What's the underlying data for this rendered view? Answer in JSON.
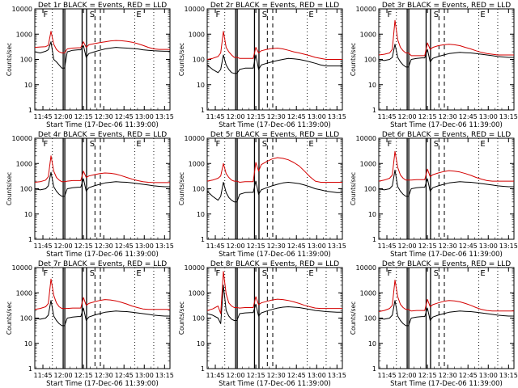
{
  "figure": {
    "title_template": "BLACK = Events, RED = LLD",
    "ylabel": "Counts/sec",
    "xlabel": "Start Time (17-Dec-06 11:39:00)",
    "x_ticks": [
      "11:45",
      "12:00",
      "12:15",
      "12:30",
      "12:45",
      "13:00",
      "13:15"
    ],
    "y_ticks": [
      "1",
      "10",
      "100",
      "1000",
      "10000"
    ],
    "colors": {
      "events": "#000000",
      "lld": "#d40000"
    },
    "marker_letters": [
      "F",
      "S",
      "E"
    ]
  },
  "chart_data": [
    {
      "type": "line",
      "title": "Det 1r BLACK = Events, RED = LLD",
      "xlabel": "Start Time (17-Dec-06 11:39:00)",
      "ylabel": "Counts/sec",
      "ylim": [
        1,
        10000
      ],
      "xlim_minutes": [
        0,
        100
      ],
      "x_minutes": [
        0,
        4,
        8,
        10,
        12,
        14,
        16,
        18,
        20,
        22,
        24,
        28,
        32,
        34,
        36,
        38,
        40,
        44,
        48,
        52,
        56,
        60,
        64,
        68,
        72,
        76,
        80,
        84,
        88,
        92,
        96,
        100
      ],
      "series": [
        {
          "name": "Events",
          "color": "#000000",
          "values": [
            200,
            180,
            210,
            240,
            500,
            100,
            80,
            60,
            45,
            45,
            200,
            230,
            240,
            240,
            350,
            120,
            170,
            200,
            230,
            260,
            280,
            300,
            290,
            280,
            270,
            260,
            240,
            230,
            220,
            215,
            210,
            210
          ]
        },
        {
          "name": "LLD",
          "color": "#d40000",
          "values": [
            300,
            310,
            320,
            360,
            1300,
            400,
            250,
            200,
            180,
            180,
            260,
            280,
            290,
            290,
            500,
            300,
            380,
            420,
            460,
            500,
            540,
            560,
            550,
            520,
            480,
            420,
            360,
            300,
            260,
            250,
            250,
            250
          ]
        }
      ]
    },
    {
      "type": "line",
      "title": "Det 2r BLACK = Events, RED = LLD",
      "xlabel": "Start Time (17-Dec-06 11:39:00)",
      "ylabel": "Counts/sec",
      "ylim": [
        1,
        10000
      ],
      "xlim_minutes": [
        0,
        100
      ],
      "x_minutes": [
        0,
        4,
        8,
        10,
        12,
        14,
        16,
        18,
        20,
        22,
        24,
        28,
        32,
        34,
        36,
        38,
        40,
        44,
        48,
        52,
        56,
        60,
        64,
        68,
        72,
        76,
        80,
        84,
        88,
        92,
        96,
        100
      ],
      "series": [
        {
          "name": "Events",
          "color": "#000000",
          "values": [
            60,
            40,
            30,
            40,
            150,
            60,
            40,
            30,
            28,
            28,
            40,
            45,
            45,
            45,
            150,
            40,
            60,
            70,
            80,
            90,
            100,
            110,
            105,
            100,
            90,
            80,
            70,
            60,
            55,
            55,
            55,
            55
          ]
        },
        {
          "name": "LLD",
          "color": "#d40000",
          "values": [
            100,
            110,
            130,
            180,
            1300,
            300,
            200,
            150,
            120,
            120,
            110,
            110,
            110,
            110,
            300,
            180,
            220,
            250,
            270,
            280,
            260,
            230,
            200,
            180,
            160,
            140,
            120,
            110,
            100,
            100,
            100,
            100
          ]
        }
      ]
    },
    {
      "type": "line",
      "title": "Det 3r BLACK = Events, RED = LLD",
      "xlabel": "Start Time (17-Dec-06 11:39:00)",
      "ylabel": "Counts/sec",
      "ylim": [
        1,
        10000
      ],
      "xlim_minutes": [
        0,
        100
      ],
      "x_minutes": [
        0,
        4,
        8,
        10,
        12,
        14,
        16,
        18,
        20,
        22,
        24,
        28,
        32,
        34,
        36,
        38,
        40,
        44,
        48,
        52,
        56,
        60,
        64,
        68,
        72,
        76,
        80,
        84,
        88,
        92,
        96,
        100
      ],
      "series": [
        {
          "name": "Events",
          "color": "#000000",
          "values": [
            100,
            90,
            100,
            120,
            400,
            120,
            80,
            60,
            50,
            50,
            100,
            110,
            115,
            115,
            250,
            80,
            110,
            130,
            150,
            170,
            180,
            190,
            185,
            180,
            170,
            160,
            150,
            140,
            130,
            125,
            120,
            120
          ]
        },
        {
          "name": "LLD",
          "color": "#d40000",
          "values": [
            150,
            160,
            180,
            250,
            3500,
            600,
            300,
            220,
            180,
            180,
            140,
            140,
            140,
            140,
            450,
            250,
            300,
            350,
            380,
            400,
            380,
            350,
            300,
            260,
            220,
            190,
            170,
            160,
            150,
            150,
            150,
            150
          ]
        }
      ]
    },
    {
      "type": "line",
      "title": "Det 4r BLACK = Events, RED = LLD",
      "xlabel": "Start Time (17-Dec-06 11:39:00)",
      "ylabel": "Counts/sec",
      "ylim": [
        1,
        10000
      ],
      "xlim_minutes": [
        0,
        100
      ],
      "x_minutes": [
        0,
        4,
        8,
        10,
        12,
        14,
        16,
        18,
        20,
        22,
        24,
        28,
        32,
        34,
        36,
        38,
        40,
        44,
        48,
        52,
        56,
        60,
        64,
        68,
        72,
        76,
        80,
        84,
        88,
        92,
        96,
        100
      ],
      "series": [
        {
          "name": "Events",
          "color": "#000000",
          "values": [
            100,
            90,
            100,
            130,
            450,
            120,
            80,
            60,
            50,
            50,
            100,
            110,
            115,
            115,
            250,
            80,
            110,
            130,
            150,
            170,
            180,
            190,
            185,
            180,
            170,
            160,
            150,
            140,
            130,
            125,
            120,
            120
          ]
        },
        {
          "name": "LLD",
          "color": "#d40000",
          "values": [
            180,
            190,
            220,
            300,
            2000,
            500,
            280,
            220,
            190,
            190,
            200,
            210,
            210,
            210,
            500,
            280,
            320,
            360,
            400,
            420,
            410,
            380,
            330,
            280,
            240,
            210,
            190,
            180,
            175,
            175,
            175,
            175
          ]
        }
      ]
    },
    {
      "type": "line",
      "title": "Det 5r BLACK = Events, RED = LLD",
      "xlabel": "Start Time (17-Dec-06 11:39:00)",
      "ylabel": "Counts/sec",
      "ylim": [
        1,
        10000
      ],
      "xlim_minutes": [
        0,
        100
      ],
      "x_minutes": [
        0,
        4,
        8,
        10,
        12,
        14,
        16,
        18,
        20,
        22,
        24,
        28,
        32,
        34,
        36,
        38,
        40,
        44,
        48,
        52,
        56,
        60,
        64,
        68,
        72,
        76,
        80,
        84,
        88,
        92,
        96,
        100
      ],
      "series": [
        {
          "name": "Events",
          "color": "#000000",
          "values": [
            80,
            50,
            35,
            50,
            180,
            70,
            45,
            35,
            30,
            30,
            60,
            70,
            72,
            72,
            200,
            60,
            90,
            110,
            130,
            150,
            170,
            180,
            170,
            160,
            140,
            120,
            100,
            90,
            80,
            75,
            70,
            70
          ]
        },
        {
          "name": "LLD",
          "color": "#d40000",
          "values": [
            200,
            220,
            260,
            320,
            1000,
            400,
            280,
            220,
            200,
            200,
            180,
            190,
            190,
            190,
            1100,
            500,
            900,
            1200,
            1500,
            1700,
            1600,
            1400,
            1100,
            800,
            500,
            300,
            200,
            180,
            180,
            180,
            180,
            180
          ]
        }
      ]
    },
    {
      "type": "line",
      "title": "Det 6r BLACK = Events, RED = LLD",
      "xlabel": "Start Time (17-Dec-06 11:39:00)",
      "ylabel": "Counts/sec",
      "ylim": [
        1,
        10000
      ],
      "xlim_minutes": [
        0,
        100
      ],
      "x_minutes": [
        0,
        4,
        8,
        10,
        12,
        14,
        16,
        18,
        20,
        22,
        24,
        28,
        32,
        34,
        36,
        38,
        40,
        44,
        48,
        52,
        56,
        60,
        64,
        68,
        72,
        76,
        80,
        84,
        88,
        92,
        96,
        100
      ],
      "series": [
        {
          "name": "Events",
          "color": "#000000",
          "values": [
            100,
            90,
            100,
            130,
            550,
            120,
            80,
            60,
            50,
            50,
            100,
            110,
            115,
            115,
            250,
            80,
            110,
            130,
            150,
            170,
            180,
            190,
            185,
            180,
            170,
            160,
            150,
            140,
            130,
            125,
            120,
            120
          ]
        },
        {
          "name": "LLD",
          "color": "#d40000",
          "values": [
            200,
            220,
            260,
            350,
            3000,
            700,
            350,
            260,
            220,
            220,
            220,
            230,
            230,
            230,
            600,
            300,
            360,
            420,
            480,
            520,
            500,
            460,
            400,
            340,
            280,
            240,
            210,
            200,
            200,
            200,
            200,
            200
          ]
        }
      ]
    },
    {
      "type": "line",
      "title": "Det 7r BLACK = Events, RED = LLD",
      "xlabel": "Start Time (17-Dec-06 11:39:00)",
      "ylabel": "Counts/sec",
      "ylim": [
        1,
        10000
      ],
      "xlim_minutes": [
        0,
        100
      ],
      "x_minutes": [
        0,
        4,
        8,
        10,
        12,
        14,
        16,
        18,
        20,
        22,
        24,
        28,
        32,
        34,
        36,
        38,
        40,
        44,
        48,
        52,
        56,
        60,
        64,
        68,
        72,
        76,
        80,
        84,
        88,
        92,
        96,
        100
      ],
      "series": [
        {
          "name": "Events",
          "color": "#000000",
          "values": [
            100,
            90,
            100,
            130,
            500,
            120,
            80,
            60,
            50,
            50,
            100,
            110,
            115,
            115,
            250,
            80,
            110,
            130,
            150,
            170,
            180,
            190,
            185,
            180,
            170,
            160,
            150,
            140,
            130,
            125,
            120,
            120
          ]
        },
        {
          "name": "LLD",
          "color": "#d40000",
          "values": [
            220,
            240,
            280,
            380,
            3500,
            800,
            400,
            280,
            240,
            240,
            240,
            250,
            250,
            250,
            650,
            320,
            380,
            440,
            500,
            540,
            520,
            480,
            420,
            360,
            300,
            260,
            230,
            220,
            220,
            220,
            220,
            220
          ]
        }
      ]
    },
    {
      "type": "line",
      "title": "Det 8r BLACK = Events, RED = LLD",
      "xlabel": "Start Time (17-Dec-06 11:39:00)",
      "ylabel": "Counts/sec",
      "ylim": [
        1,
        10000
      ],
      "xlim_minutes": [
        0,
        100
      ],
      "x_minutes": [
        0,
        4,
        8,
        10,
        12,
        14,
        16,
        18,
        20,
        22,
        24,
        28,
        32,
        34,
        36,
        38,
        40,
        44,
        48,
        52,
        56,
        60,
        64,
        68,
        72,
        76,
        80,
        84,
        88,
        92,
        96,
        100
      ],
      "series": [
        {
          "name": "Events",
          "color": "#000000",
          "values": [
            150,
            130,
            100,
            60,
            2000,
            200,
            120,
            90,
            80,
            80,
            150,
            160,
            165,
            165,
            350,
            120,
            160,
            190,
            220,
            250,
            270,
            280,
            270,
            260,
            240,
            220,
            200,
            190,
            180,
            175,
            170,
            170
          ]
        },
        {
          "name": "LLD",
          "color": "#d40000",
          "values": [
            200,
            230,
            300,
            150,
            7000,
            900,
            400,
            300,
            260,
            260,
            250,
            260,
            260,
            260,
            700,
            340,
            400,
            460,
            520,
            560,
            540,
            500,
            440,
            380,
            320,
            280,
            250,
            240,
            240,
            240,
            240,
            240
          ]
        }
      ]
    },
    {
      "type": "line",
      "title": "Det 9r BLACK = Events, RED = LLD",
      "xlabel": "Start Time (17-Dec-06 11:39:00)",
      "ylabel": "Counts/sec",
      "ylim": [
        1,
        10000
      ],
      "xlim_minutes": [
        0,
        100
      ],
      "x_minutes": [
        0,
        4,
        8,
        10,
        12,
        14,
        16,
        18,
        20,
        22,
        24,
        28,
        32,
        34,
        36,
        38,
        40,
        44,
        48,
        52,
        56,
        60,
        64,
        68,
        72,
        76,
        80,
        84,
        88,
        92,
        96,
        100
      ],
      "series": [
        {
          "name": "Events",
          "color": "#000000",
          "values": [
            100,
            90,
            100,
            130,
            500,
            120,
            80,
            60,
            50,
            50,
            100,
            110,
            115,
            115,
            250,
            80,
            110,
            130,
            150,
            170,
            180,
            190,
            185,
            180,
            170,
            160,
            150,
            140,
            130,
            125,
            120,
            120
          ]
        },
        {
          "name": "LLD",
          "color": "#d40000",
          "values": [
            180,
            200,
            240,
            320,
            3200,
            700,
            350,
            260,
            220,
            220,
            190,
            200,
            200,
            200,
            550,
            280,
            340,
            400,
            460,
            500,
            480,
            440,
            380,
            320,
            260,
            220,
            200,
            190,
            190,
            190,
            190,
            190
          ]
        }
      ]
    }
  ]
}
